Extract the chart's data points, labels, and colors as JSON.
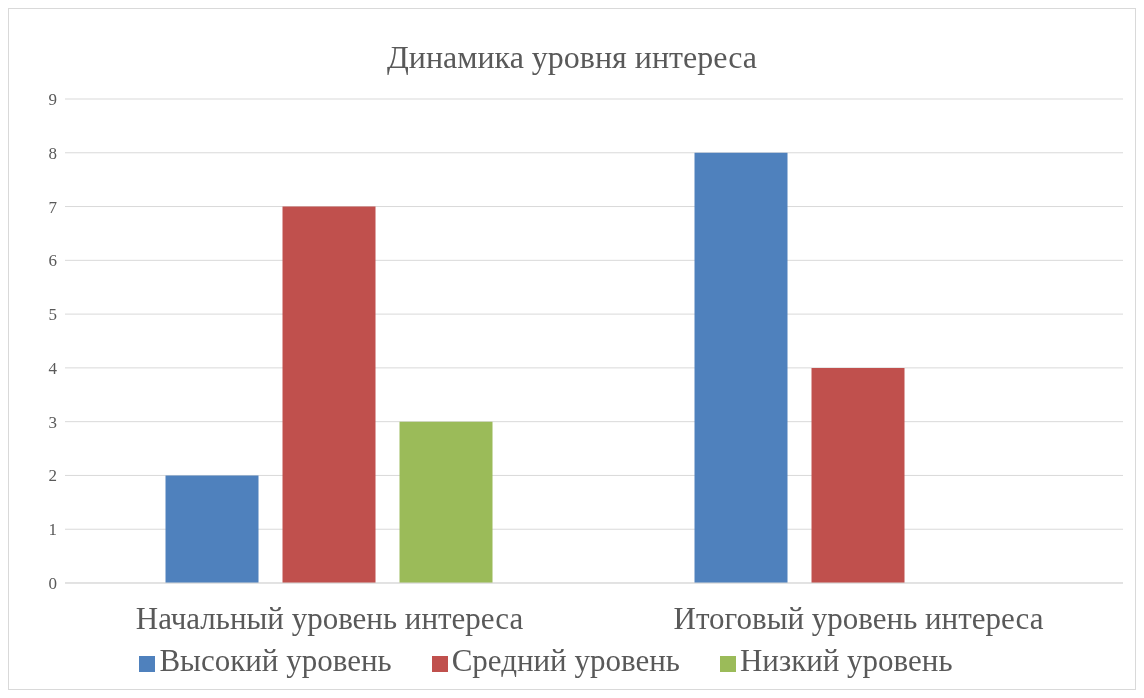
{
  "chart_data": {
    "type": "bar",
    "title": "Динамика уровня интереса",
    "categories": [
      "Начальный уровень интереса",
      "Итоговый уровень интереса"
    ],
    "series": [
      {
        "name": "Высокий уровень",
        "color": "#4f81bd",
        "values": [
          2,
          8
        ]
      },
      {
        "name": "Средний уровень",
        "color": "#c0504d",
        "values": [
          7,
          4
        ]
      },
      {
        "name": "Низкий уровень",
        "color": "#9bbb59",
        "values": [
          3,
          0
        ]
      }
    ],
    "ylim": [
      0,
      9
    ],
    "yticks": [
      0,
      1,
      2,
      3,
      4,
      5,
      6,
      7,
      8,
      9
    ],
    "grid": "y",
    "legend": "bottom"
  }
}
